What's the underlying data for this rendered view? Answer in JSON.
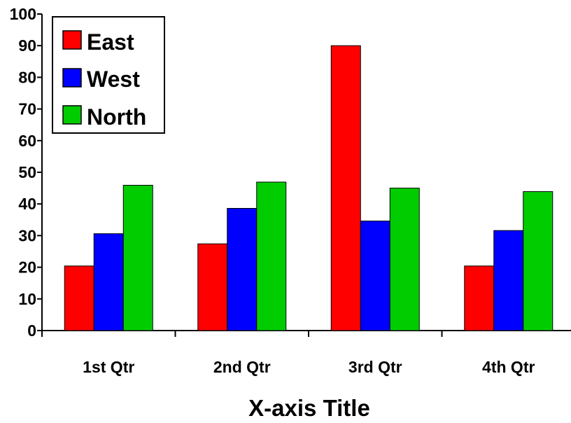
{
  "chart_data": {
    "type": "bar",
    "title": "",
    "xlabel": "X-axis Title",
    "ylabel": "",
    "categories": [
      "1st Qtr",
      "2nd Qtr",
      "3rd Qtr",
      "4th Qtr"
    ],
    "series": [
      {
        "name": "East",
        "color": "#ff0000",
        "values": [
          20.4,
          27.4,
          90,
          20.4
        ]
      },
      {
        "name": "West",
        "color": "#0000ff",
        "values": [
          30.6,
          38.6,
          34.6,
          31.6
        ]
      },
      {
        "name": "North",
        "color": "#00cc00",
        "values": [
          45.9,
          46.9,
          45,
          43.9
        ]
      }
    ],
    "ylim": [
      0,
      100
    ],
    "yticks": [
      "0",
      "10",
      "20",
      "30",
      "40",
      "50",
      "60",
      "70",
      "80",
      "90",
      "100"
    ],
    "grid": false,
    "legend_position": "top-left"
  }
}
